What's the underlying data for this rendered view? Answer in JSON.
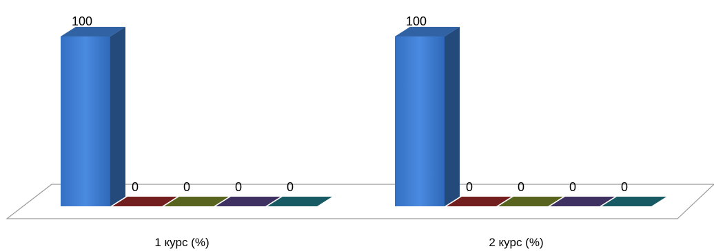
{
  "chart_data": {
    "type": "bar",
    "categories": [
      "1 курс (%)",
      "2 курс (%)"
    ],
    "series": [
      {
        "color": "#3a78c8",
        "values": [
          100,
          100
        ]
      },
      {
        "color": "#8c2424",
        "values": [
          0,
          0
        ]
      },
      {
        "color": "#6b7a24",
        "values": [
          0,
          0
        ]
      },
      {
        "color": "#4d3a78",
        "values": [
          0,
          0
        ]
      },
      {
        "color": "#1d6e7a",
        "values": [
          0,
          0
        ]
      }
    ],
    "ylim": [
      0,
      100
    ],
    "grid": false,
    "legend": "none"
  }
}
